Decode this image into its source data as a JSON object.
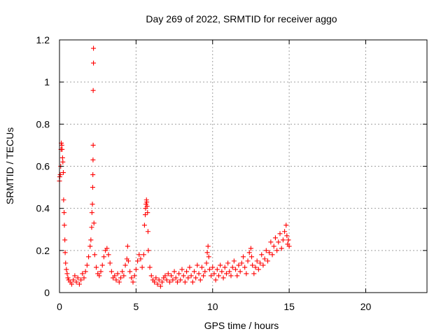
{
  "chart_data": {
    "type": "scatter",
    "title": "Day 269 of 2022, SRMTID for receiver aggo",
    "xlabel": "GPS time / hours",
    "ylabel": "SRMTID / TECUs",
    "xlim": [
      0,
      24
    ],
    "ylim": [
      0,
      1.2
    ],
    "x_ticks": [
      0,
      5,
      10,
      15,
      20
    ],
    "y_ticks": [
      0,
      0.2,
      0.4,
      0.6,
      0.8,
      1,
      1.2
    ],
    "x_tick_labels": [
      "0",
      "5",
      "10",
      "15",
      "20"
    ],
    "y_tick_labels": [
      "0",
      "0.2",
      "0.4",
      "0.6",
      "0.8",
      "1",
      "1.2"
    ],
    "grid": true,
    "marker": "+",
    "series": [
      {
        "name": "SRMTID",
        "color": "#ff0000",
        "points": [
          [
            0.0,
            0.53
          ],
          [
            0.02,
            0.55
          ],
          [
            0.05,
            0.56
          ],
          [
            0.08,
            0.6
          ],
          [
            0.1,
            0.68
          ],
          [
            0.12,
            0.71
          ],
          [
            0.15,
            0.7
          ],
          [
            0.17,
            0.68
          ],
          [
            0.2,
            0.64
          ],
          [
            0.22,
            0.62
          ],
          [
            0.25,
            0.57
          ],
          [
            0.27,
            0.44
          ],
          [
            0.3,
            0.38
          ],
          [
            0.32,
            0.32
          ],
          [
            0.35,
            0.25
          ],
          [
            0.37,
            0.19
          ],
          [
            0.4,
            0.14
          ],
          [
            0.45,
            0.11
          ],
          [
            0.5,
            0.09
          ],
          [
            0.55,
            0.07
          ],
          [
            0.6,
            0.06
          ],
          [
            0.7,
            0.05
          ],
          [
            0.8,
            0.04
          ],
          [
            0.9,
            0.06
          ],
          [
            1.0,
            0.08
          ],
          [
            1.1,
            0.05
          ],
          [
            1.2,
            0.07
          ],
          [
            1.3,
            0.04
          ],
          [
            1.4,
            0.06
          ],
          [
            1.5,
            0.09
          ],
          [
            1.6,
            0.07
          ],
          [
            1.7,
            0.1
          ],
          [
            1.8,
            0.13
          ],
          [
            1.9,
            0.17
          ],
          [
            2.0,
            0.22
          ],
          [
            2.05,
            0.25
          ],
          [
            2.1,
            0.31
          ],
          [
            2.12,
            0.38
          ],
          [
            2.15,
            0.42
          ],
          [
            2.17,
            0.5
          ],
          [
            2.18,
            0.56
          ],
          [
            2.19,
            0.63
          ],
          [
            2.2,
            0.7
          ],
          [
            2.2,
            0.96
          ],
          [
            2.22,
            1.09
          ],
          [
            2.22,
            1.16
          ],
          [
            2.25,
            0.33
          ],
          [
            2.3,
            0.18
          ],
          [
            2.4,
            0.12
          ],
          [
            2.5,
            0.09
          ],
          [
            2.6,
            0.08
          ],
          [
            2.7,
            0.1
          ],
          [
            2.8,
            0.13
          ],
          [
            2.9,
            0.17
          ],
          [
            3.0,
            0.2
          ],
          [
            3.1,
            0.21
          ],
          [
            3.2,
            0.18
          ],
          [
            3.3,
            0.14
          ],
          [
            3.4,
            0.1
          ],
          [
            3.5,
            0.07
          ],
          [
            3.6,
            0.08
          ],
          [
            3.7,
            0.06
          ],
          [
            3.8,
            0.09
          ],
          [
            3.9,
            0.05
          ],
          [
            4.0,
            0.07
          ],
          [
            4.1,
            0.1
          ],
          [
            4.2,
            0.08
          ],
          [
            4.3,
            0.13
          ],
          [
            4.4,
            0.16
          ],
          [
            4.45,
            0.22
          ],
          [
            4.5,
            0.15
          ],
          [
            4.6,
            0.1
          ],
          [
            4.7,
            0.07
          ],
          [
            4.8,
            0.05
          ],
          [
            4.9,
            0.08
          ],
          [
            5.0,
            0.11
          ],
          [
            5.1,
            0.15
          ],
          [
            5.2,
            0.18
          ],
          [
            5.3,
            0.16
          ],
          [
            5.4,
            0.12
          ],
          [
            5.5,
            0.18
          ],
          [
            5.55,
            0.32
          ],
          [
            5.6,
            0.37
          ],
          [
            5.62,
            0.4
          ],
          [
            5.65,
            0.42
          ],
          [
            5.68,
            0.44
          ],
          [
            5.7,
            0.43
          ],
          [
            5.72,
            0.41
          ],
          [
            5.75,
            0.38
          ],
          [
            5.78,
            0.29
          ],
          [
            5.8,
            0.2
          ],
          [
            5.9,
            0.12
          ],
          [
            6.0,
            0.08
          ],
          [
            6.1,
            0.06
          ],
          [
            6.2,
            0.05
          ],
          [
            6.3,
            0.07
          ],
          [
            6.4,
            0.04
          ],
          [
            6.5,
            0.06
          ],
          [
            6.6,
            0.03
          ],
          [
            6.7,
            0.05
          ],
          [
            6.8,
            0.07
          ],
          [
            6.9,
            0.08
          ],
          [
            7.0,
            0.06
          ],
          [
            7.1,
            0.09
          ],
          [
            7.2,
            0.05
          ],
          [
            7.3,
            0.08
          ],
          [
            7.4,
            0.06
          ],
          [
            7.5,
            0.1
          ],
          [
            7.6,
            0.07
          ],
          [
            7.7,
            0.05
          ],
          [
            7.8,
            0.09
          ],
          [
            7.9,
            0.06
          ],
          [
            8.0,
            0.11
          ],
          [
            8.1,
            0.08
          ],
          [
            8.2,
            0.05
          ],
          [
            8.3,
            0.1
          ],
          [
            8.4,
            0.07
          ],
          [
            8.5,
            0.12
          ],
          [
            8.6,
            0.08
          ],
          [
            8.7,
            0.05
          ],
          [
            8.8,
            0.1
          ],
          [
            8.9,
            0.07
          ],
          [
            9.0,
            0.13
          ],
          [
            9.1,
            0.09
          ],
          [
            9.2,
            0.06
          ],
          [
            9.3,
            0.12
          ],
          [
            9.4,
            0.08
          ],
          [
            9.5,
            0.1
          ],
          [
            9.6,
            0.14
          ],
          [
            9.65,
            0.19
          ],
          [
            9.7,
            0.22
          ],
          [
            9.75,
            0.17
          ],
          [
            9.8,
            0.11
          ],
          [
            9.9,
            0.08
          ],
          [
            10.0,
            0.12
          ],
          [
            10.1,
            0.09
          ],
          [
            10.2,
            0.06
          ],
          [
            10.3,
            0.11
          ],
          [
            10.4,
            0.08
          ],
          [
            10.5,
            0.13
          ],
          [
            10.6,
            0.1
          ],
          [
            10.7,
            0.07
          ],
          [
            10.8,
            0.12
          ],
          [
            10.9,
            0.09
          ],
          [
            11.0,
            0.14
          ],
          [
            11.1,
            0.1
          ],
          [
            11.2,
            0.08
          ],
          [
            11.3,
            0.12
          ],
          [
            11.4,
            0.15
          ],
          [
            11.5,
            0.11
          ],
          [
            11.6,
            0.08
          ],
          [
            11.7,
            0.13
          ],
          [
            11.8,
            0.1
          ],
          [
            11.9,
            0.14
          ],
          [
            12.0,
            0.17
          ],
          [
            12.1,
            0.12
          ],
          [
            12.2,
            0.09
          ],
          [
            12.3,
            0.15
          ],
          [
            12.4,
            0.19
          ],
          [
            12.5,
            0.21
          ],
          [
            12.55,
            0.17
          ],
          [
            12.6,
            0.13
          ],
          [
            12.7,
            0.09
          ],
          [
            12.8,
            0.12
          ],
          [
            12.9,
            0.15
          ],
          [
            13.0,
            0.11
          ],
          [
            13.1,
            0.14
          ],
          [
            13.2,
            0.18
          ],
          [
            13.3,
            0.13
          ],
          [
            13.4,
            0.16
          ],
          [
            13.5,
            0.2
          ],
          [
            13.6,
            0.15
          ],
          [
            13.7,
            0.19
          ],
          [
            13.8,
            0.24
          ],
          [
            13.9,
            0.18
          ],
          [
            14.0,
            0.22
          ],
          [
            14.1,
            0.26
          ],
          [
            14.2,
            0.2
          ],
          [
            14.3,
            0.24
          ],
          [
            14.4,
            0.28
          ],
          [
            14.5,
            0.21
          ],
          [
            14.6,
            0.25
          ],
          [
            14.7,
            0.29
          ],
          [
            14.8,
            0.32
          ],
          [
            14.85,
            0.27
          ],
          [
            14.9,
            0.23
          ],
          [
            14.95,
            0.25
          ],
          [
            15.0,
            0.22
          ]
        ]
      }
    ]
  }
}
